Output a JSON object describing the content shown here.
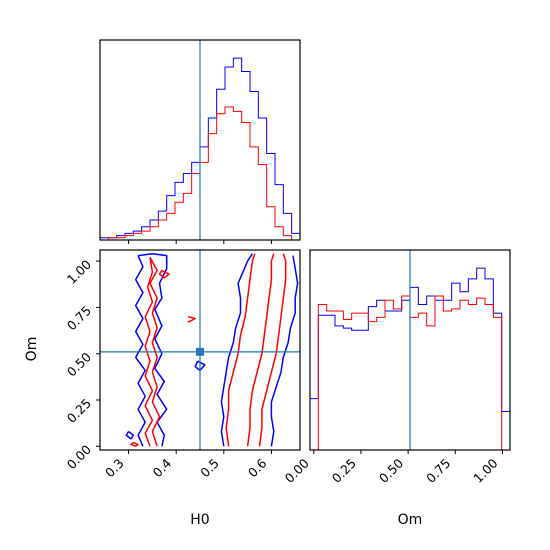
{
  "chart_data": {
    "type": "corner",
    "parameters": [
      "H0",
      "Om"
    ],
    "truth": {
      "H0": 0.45,
      "Om": 0.51
    },
    "series": [
      {
        "name": "",
        "color": "#0000ff"
      },
      {
        "name": "",
        "color": "#ff0000"
      }
    ],
    "truth_color": "#1f77b4",
    "panels": [
      {
        "name": "H0-histogram",
        "type": "histogram",
        "xlim": [
          0.24,
          0.66
        ],
        "bins": [
          0.24,
          0.2575,
          0.275,
          0.2925,
          0.31,
          0.3275,
          0.345,
          0.3625,
          0.38,
          0.3975,
          0.415,
          0.4325,
          0.45,
          0.4675,
          0.485,
          0.5025,
          0.52,
          0.5375,
          0.555,
          0.5725,
          0.59,
          0.6075,
          0.625,
          0.6425,
          0.66
        ],
        "series_counts": [
          [
            1,
            1,
            2,
            3,
            4,
            6,
            9,
            13,
            20,
            26,
            30,
            35,
            42,
            55,
            68,
            78,
            82,
            76,
            67,
            55,
            39,
            25,
            12,
            3
          ],
          [
            0,
            1,
            1,
            2,
            3,
            4,
            6,
            9,
            12,
            17,
            21,
            30,
            35,
            48,
            57,
            60,
            58,
            53,
            42,
            34,
            15,
            6,
            2,
            0
          ]
        ]
      },
      {
        "name": "Om-histogram",
        "type": "histogram",
        "xlim": [
          -0.02,
          1.04
        ],
        "bins": [
          -0.02,
          0.0242,
          0.0683,
          0.1125,
          0.1567,
          0.2008,
          0.245,
          0.2892,
          0.3333,
          0.3775,
          0.4217,
          0.4658,
          0.51,
          0.5542,
          0.5983,
          0.6425,
          0.6867,
          0.7308,
          0.775,
          0.8192,
          0.8633,
          0.9075,
          0.9517,
          0.9958,
          1.04
        ],
        "series_counts": [
          [
            24,
            63,
            63,
            58,
            57,
            56,
            56,
            67,
            70,
            65,
            65,
            70,
            76,
            68,
            72,
            70,
            70,
            78,
            74,
            80,
            85,
            80,
            64,
            18
          ],
          [
            0,
            68,
            65,
            65,
            61,
            64,
            64,
            60,
            62,
            70,
            66,
            72,
            62,
            64,
            58,
            72,
            65,
            66,
            70,
            68,
            71,
            68,
            62,
            0
          ]
        ]
      }
    ],
    "joint": {
      "xlim": [
        0.24,
        0.66
      ],
      "ylim": [
        -0.02,
        1.06
      ],
      "xlabel": "H0",
      "ylabel": "Om",
      "contours": [
        {
          "series": 0,
          "points": [
            [
              0.32,
              1.03
            ],
            [
              0.35,
              1.04
            ],
            [
              0.38,
              1.03
            ],
            [
              0.38,
              0.96
            ],
            [
              0.365,
              0.88
            ],
            [
              0.37,
              0.8
            ],
            [
              0.355,
              0.74
            ],
            [
              0.37,
              0.65
            ],
            [
              0.355,
              0.58
            ],
            [
              0.37,
              0.5
            ],
            [
              0.355,
              0.42
            ],
            [
              0.375,
              0.35
            ],
            [
              0.36,
              0.28
            ],
            [
              0.38,
              0.2
            ],
            [
              0.36,
              0.13
            ],
            [
              0.375,
              0.06
            ],
            [
              0.37,
              0.0
            ]
          ]
        },
        {
          "series": 0,
          "points": [
            [
              0.33,
              0.0
            ],
            [
              0.32,
              0.06
            ],
            [
              0.335,
              0.13
            ],
            [
              0.32,
              0.2
            ],
            [
              0.335,
              0.27
            ],
            [
              0.32,
              0.34
            ],
            [
              0.335,
              0.41
            ],
            [
              0.315,
              0.48
            ],
            [
              0.33,
              0.55
            ],
            [
              0.315,
              0.62
            ],
            [
              0.33,
              0.69
            ],
            [
              0.315,
              0.76
            ],
            [
              0.33,
              0.83
            ],
            [
              0.315,
              0.9
            ],
            [
              0.33,
              0.97
            ],
            [
              0.32,
              1.03
            ]
          ]
        },
        {
          "series": 0,
          "points": [
            [
              0.5,
              0.0
            ],
            [
              0.495,
              0.08
            ],
            [
              0.5,
              0.16
            ],
            [
              0.495,
              0.24
            ],
            [
              0.5,
              0.32
            ],
            [
              0.505,
              0.4
            ],
            [
              0.51,
              0.48
            ],
            [
              0.52,
              0.56
            ],
            [
              0.525,
              0.64
            ],
            [
              0.535,
              0.72
            ],
            [
              0.535,
              0.8
            ],
            [
              0.53,
              0.88
            ],
            [
              0.54,
              0.94
            ],
            [
              0.55,
              1.0
            ],
            [
              0.56,
              1.04
            ]
          ]
        },
        {
          "series": 0,
          "points": [
            [
              0.6,
              0.0
            ],
            [
              0.605,
              0.08
            ],
            [
              0.6,
              0.16
            ],
            [
              0.6,
              0.24
            ],
            [
              0.61,
              0.32
            ],
            [
              0.62,
              0.4
            ],
            [
              0.625,
              0.48
            ],
            [
              0.635,
              0.56
            ],
            [
              0.64,
              0.64
            ],
            [
              0.65,
              0.72
            ],
            [
              0.65,
              0.8
            ],
            [
              0.655,
              0.88
            ],
            [
              0.65,
              0.96
            ],
            [
              0.645,
              1.03
            ]
          ]
        },
        {
          "series": 0,
          "points": [
            [
              0.3,
              0.08
            ],
            [
              0.31,
              0.06
            ],
            [
              0.305,
              0.04
            ],
            [
              0.295,
              0.06
            ],
            [
              0.3,
              0.08
            ]
          ]
        },
        {
          "series": 0,
          "points": [
            [
              0.445,
              0.46
            ],
            [
              0.46,
              0.44
            ],
            [
              0.45,
              0.41
            ],
            [
              0.44,
              0.43
            ],
            [
              0.445,
              0.46
            ]
          ]
        },
        {
          "series": 1,
          "points": [
            [
              0.345,
              1.02
            ],
            [
              0.36,
              0.95
            ],
            [
              0.345,
              0.88
            ],
            [
              0.36,
              0.8
            ],
            [
              0.35,
              0.72
            ],
            [
              0.36,
              0.64
            ],
            [
              0.35,
              0.56
            ],
            [
              0.36,
              0.48
            ],
            [
              0.35,
              0.4
            ],
            [
              0.36,
              0.32
            ],
            [
              0.35,
              0.24
            ],
            [
              0.365,
              0.16
            ],
            [
              0.35,
              0.08
            ],
            [
              0.36,
              0.0
            ]
          ]
        },
        {
          "series": 1,
          "points": [
            [
              0.345,
              0.0
            ],
            [
              0.335,
              0.07
            ],
            [
              0.35,
              0.14
            ],
            [
              0.335,
              0.22
            ],
            [
              0.35,
              0.3
            ],
            [
              0.335,
              0.38
            ],
            [
              0.345,
              0.46
            ],
            [
              0.335,
              0.54
            ],
            [
              0.345,
              0.62
            ],
            [
              0.335,
              0.7
            ],
            [
              0.35,
              0.78
            ],
            [
              0.34,
              0.86
            ],
            [
              0.35,
              0.94
            ],
            [
              0.345,
              1.02
            ]
          ]
        },
        {
          "series": 1,
          "points": [
            [
              0.51,
              0.0
            ],
            [
              0.505,
              0.1
            ],
            [
              0.51,
              0.2
            ],
            [
              0.51,
              0.3
            ],
            [
              0.52,
              0.4
            ],
            [
              0.53,
              0.5
            ],
            [
              0.535,
              0.6
            ],
            [
              0.545,
              0.7
            ],
            [
              0.55,
              0.8
            ],
            [
              0.555,
              0.9
            ],
            [
              0.56,
              1.0
            ],
            [
              0.565,
              1.04
            ]
          ]
        },
        {
          "series": 1,
          "points": [
            [
              0.55,
              0.0
            ],
            [
              0.555,
              0.1
            ],
            [
              0.555,
              0.2
            ],
            [
              0.56,
              0.3
            ],
            [
              0.57,
              0.4
            ],
            [
              0.58,
              0.5
            ],
            [
              0.585,
              0.6
            ],
            [
              0.59,
              0.7
            ],
            [
              0.595,
              0.8
            ],
            [
              0.6,
              0.9
            ],
            [
              0.6,
              1.0
            ],
            [
              0.605,
              1.04
            ]
          ]
        },
        {
          "series": 1,
          "points": [
            [
              0.575,
              0.0
            ],
            [
              0.58,
              0.1
            ],
            [
              0.58,
              0.2
            ],
            [
              0.59,
              0.3
            ],
            [
              0.6,
              0.4
            ],
            [
              0.61,
              0.5
            ],
            [
              0.615,
              0.6
            ],
            [
              0.62,
              0.7
            ],
            [
              0.625,
              0.8
            ],
            [
              0.63,
              0.9
            ],
            [
              0.63,
              1.0
            ],
            [
              0.625,
              1.04
            ]
          ]
        },
        {
          "series": 1,
          "points": [
            [
              0.37,
              0.95
            ],
            [
              0.385,
              0.93
            ],
            [
              0.375,
              0.91
            ],
            [
              0.365,
              0.93
            ],
            [
              0.37,
              0.95
            ]
          ]
        },
        {
          "series": 1,
          "points": [
            [
              0.31,
              0.02
            ],
            [
              0.32,
              0.01
            ],
            [
              0.315,
              0.0
            ],
            [
              0.305,
              0.01
            ],
            [
              0.31,
              0.02
            ]
          ]
        },
        {
          "series": 1,
          "points": [
            [
              0.425,
              0.7
            ],
            [
              0.44,
              0.69
            ],
            [
              0.425,
              0.67
            ]
          ]
        }
      ]
    },
    "ticks": {
      "H0": [
        0.3,
        0.4,
        0.5,
        0.6
      ],
      "H0_labels": [
        "0.3",
        "0.4",
        "0.5",
        "0.6"
      ],
      "Om": [
        0.0,
        0.25,
        0.5,
        0.75,
        1.0
      ],
      "Om_labels": [
        "0.00",
        "0.25",
        "0.50",
        "0.75",
        "1.00"
      ]
    }
  }
}
